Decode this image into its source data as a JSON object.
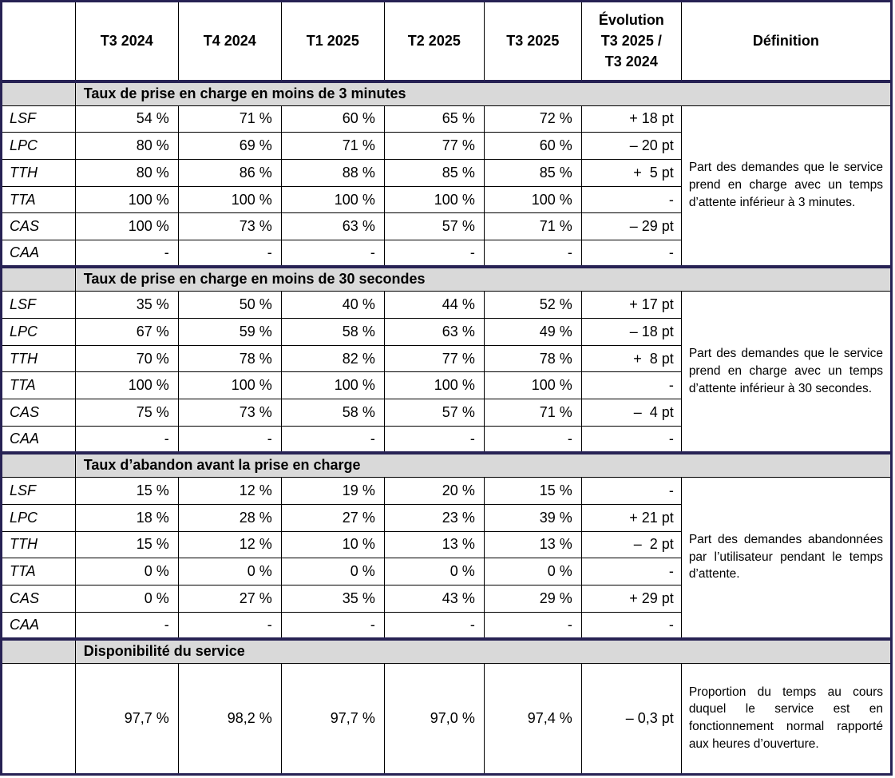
{
  "table": {
    "colors": {
      "accent_border": "#272254",
      "section_band_bg": "#d9d9d9",
      "grid_line": "#000000",
      "text": "#000000"
    },
    "header": {
      "corner": "",
      "quarter_columns": [
        "T3 2024",
        "T4 2024",
        "T1 2025",
        "T2 2025",
        "T3 2025"
      ],
      "evolution_column": "Évolution\nT3 2025 /\nT3 2024",
      "definition_column": "Définition"
    },
    "sections": [
      {
        "title": "Taux de prise en charge en moins de 3 minutes",
        "definition": "Part des demandes que le service prend en charge avec un temps d’attente inférieur à 3 minutes.",
        "rows": [
          {
            "label": "LSF",
            "values": [
              "54 %",
              "71 %",
              "60 %",
              "65 %",
              "72 %"
            ],
            "evolution": "+ 18 pt"
          },
          {
            "label": "LPC",
            "values": [
              "80 %",
              "69 %",
              "71 %",
              "77 %",
              "60 %"
            ],
            "evolution": "– 20 pt"
          },
          {
            "label": "TTH",
            "values": [
              "80 %",
              "86 %",
              "88 %",
              "85 %",
              "85 %"
            ],
            "evolution": "+  5 pt"
          },
          {
            "label": "TTA",
            "values": [
              "100 %",
              "100 %",
              "100 %",
              "100 %",
              "100 %"
            ],
            "evolution": "-"
          },
          {
            "label": "CAS",
            "values": [
              "100 %",
              "73 %",
              "63 %",
              "57 %",
              "71 %"
            ],
            "evolution": "– 29 pt"
          },
          {
            "label": "CAA",
            "values": [
              "-",
              "-",
              "-",
              "-",
              "-"
            ],
            "evolution": "-"
          }
        ]
      },
      {
        "title": "Taux de prise en charge en moins de 30 secondes",
        "definition": "Part des demandes que le service prend en charge avec un temps d’attente inférieur à 30 secondes.",
        "rows": [
          {
            "label": "LSF",
            "values": [
              "35 %",
              "50 %",
              "40 %",
              "44 %",
              "52 %"
            ],
            "evolution": "+ 17 pt"
          },
          {
            "label": "LPC",
            "values": [
              "67 %",
              "59 %",
              "58 %",
              "63 %",
              "49 %"
            ],
            "evolution": "– 18 pt"
          },
          {
            "label": "TTH",
            "values": [
              "70 %",
              "78 %",
              "82 %",
              "77 %",
              "78 %"
            ],
            "evolution": "+  8 pt"
          },
          {
            "label": "TTA",
            "values": [
              "100 %",
              "100 %",
              "100 %",
              "100 %",
              "100 %"
            ],
            "evolution": "-"
          },
          {
            "label": "CAS",
            "values": [
              "75 %",
              "73 %",
              "58 %",
              "57 %",
              "71 %"
            ],
            "evolution": "–  4 pt"
          },
          {
            "label": "CAA",
            "values": [
              "-",
              "-",
              "-",
              "-",
              "-"
            ],
            "evolution": "-"
          }
        ]
      },
      {
        "title": "Taux d’abandon avant la prise en charge",
        "definition": "Part des demandes abandonnées par l’utili­sateur pendant le temps d’attente.",
        "rows": [
          {
            "label": "LSF",
            "values": [
              "15 %",
              "12 %",
              "19 %",
              "20 %",
              "15 %"
            ],
            "evolution": "-"
          },
          {
            "label": "LPC",
            "values": [
              "18 %",
              "28 %",
              "27 %",
              "23 %",
              "39 %"
            ],
            "evolution": "+ 21 pt"
          },
          {
            "label": "TTH",
            "values": [
              "15 %",
              "12 %",
              "10 %",
              "13 %",
              "13 %"
            ],
            "evolution": "–  2 pt"
          },
          {
            "label": "TTA",
            "values": [
              "0 %",
              "0 %",
              "0 %",
              "0 %",
              "0 %"
            ],
            "evolution": "-"
          },
          {
            "label": "CAS",
            "values": [
              "0 %",
              "27 %",
              "35 %",
              "43 %",
              "29 %"
            ],
            "evolution": "+ 29 pt"
          },
          {
            "label": "CAA",
            "values": [
              "-",
              "-",
              "-",
              "-",
              "-"
            ],
            "evolution": "-"
          }
        ]
      },
      {
        "title": "Disponibilité du service",
        "definition": "Proportion du temps au cours duquel le service est en fonctionnement normal rapporté aux heures d’ouverture.",
        "rows": [
          {
            "label": "",
            "values": [
              "97,7 %",
              "98,2 %",
              "97,7 %",
              "97,0 %",
              "97,4 %"
            ],
            "evolution": "– 0,3 pt"
          }
        ]
      }
    ]
  }
}
